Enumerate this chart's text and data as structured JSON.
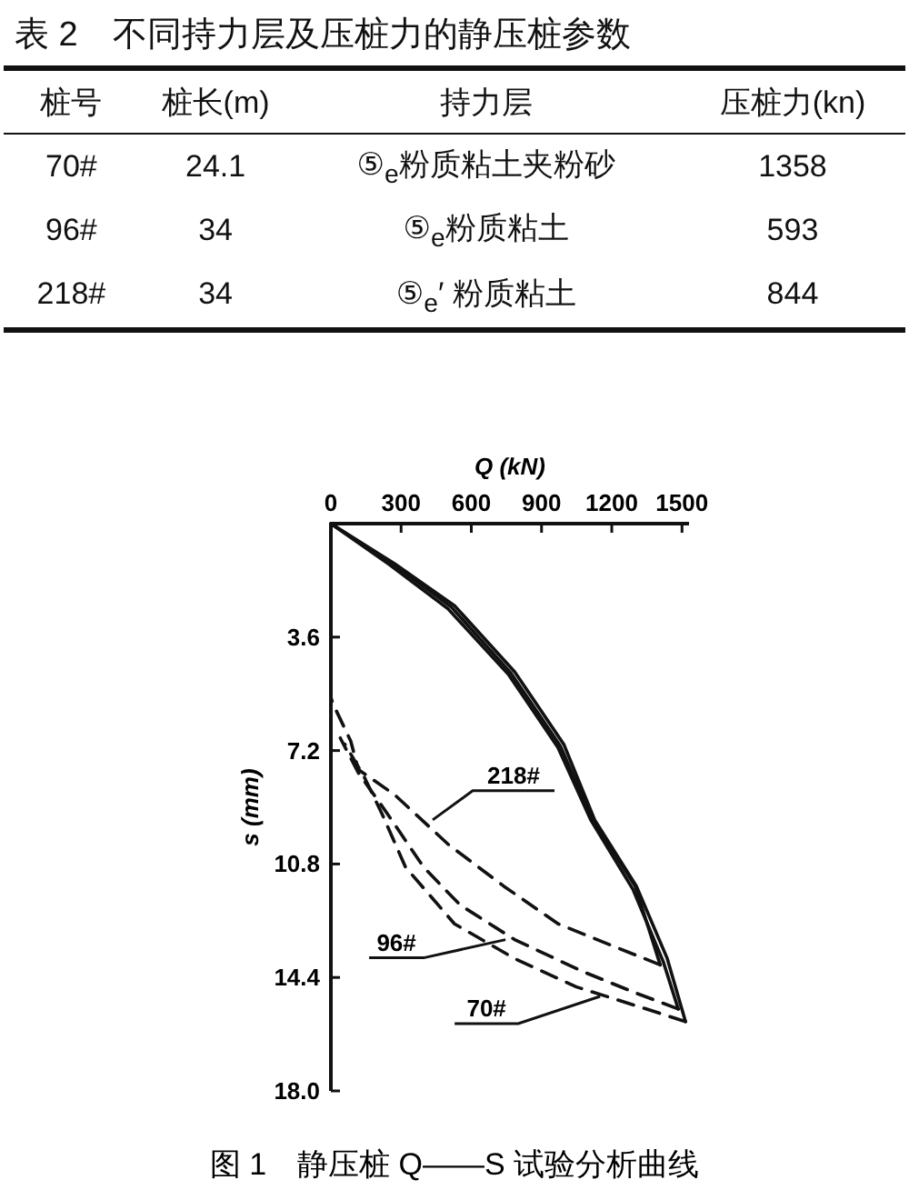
{
  "chart_data": [
    {
      "type": "other",
      "title": "表 2　不同持力层及压桩力的静压桩参数",
      "annotations": [
        "桩号",
        "桩长(m)",
        "持力层",
        "压桩力(kn)",
        "70#",
        "24.1",
        "⑤$_{e}$粉质粘土夹粉砂",
        "1358",
        "96#",
        "34",
        "⑤$_{e}$粉质粘土",
        "593",
        "218#",
        "34",
        "⑤$_{e}$′ 粉质粘土",
        "844"
      ]
    },
    {
      "type": "line",
      "xlabel": "Q (kN)",
      "ylabel": "s (mm)",
      "xlim": [
        0,
        1530
      ],
      "ylim": [
        18,
        0
      ],
      "xticks": [
        0,
        300,
        600,
        900,
        1200,
        1500
      ],
      "yticks": [
        {
          "value": 3.6,
          "label": "3.6"
        },
        {
          "value": 7.2,
          "label": "7.2"
        },
        {
          "value": 10.8,
          "label": "10.8"
        },
        {
          "value": 14.4,
          "label": "14.4"
        },
        {
          "value": 18,
          "label": "18.0"
        }
      ],
      "grid": false,
      "series": [
        {
          "color": "#111111",
          "line_style": "solid",
          "x": [
            0,
            272,
            528,
            785,
            995,
            1127,
            1305,
            1437,
            1515
          ],
          "values": [
            0,
            1.27,
            2.6,
            4.7,
            7.0,
            9.4,
            11.5,
            13.8,
            15.8
          ]
        },
        {
          "color": "#111111",
          "line_style": "solid",
          "x": [
            0,
            250,
            500,
            760,
            970,
            1110,
            1290,
            1420,
            1484
          ],
          "values": [
            0,
            1.3,
            2.7,
            4.8,
            7.1,
            9.4,
            11.6,
            13.9,
            15.4
          ]
        },
        {
          "color": "#111111",
          "line_style": "solid",
          "x": [
            0,
            260,
            515,
            770,
            980,
            1120,
            1300,
            1407
          ],
          "values": [
            0,
            1.25,
            2.65,
            4.75,
            7.05,
            9.4,
            11.5,
            14.0
          ]
        },
        {
          "color": "#111111",
          "line_style": "dashed",
          "x": [
            1407,
            1204,
            971,
            738,
            505,
            272,
            117,
            85,
            8,
            0
          ],
          "values": [
            14.0,
            13.4,
            12.7,
            11.5,
            10.2,
            8.6,
            7.8,
            6.9,
            5.7,
            5.5
          ]
        },
        {
          "color": "#111111",
          "line_style": "dashed",
          "x": [
            1484,
            1305,
            1072,
            785,
            552,
            396,
            241,
            117,
            40
          ],
          "values": [
            15.4,
            14.9,
            14.2,
            13.2,
            12.1,
            10.9,
            9.2,
            7.9,
            6.8
          ]
        },
        {
          "color": "#111111",
          "line_style": "dashed",
          "x": [
            1515,
            1305,
            1049,
            785,
            528,
            319,
            218,
            140,
            60
          ],
          "values": [
            15.8,
            15.3,
            14.7,
            13.8,
            12.7,
            10.9,
            9.2,
            8.0,
            7.0
          ]
        }
      ],
      "annotations": [
        {
          "text": "218#",
          "x": 435,
          "y": 9.4
        },
        {
          "text": "96#",
          "x": 746,
          "y": 13.2
        },
        {
          "text": "70#",
          "x": 1150,
          "y": 15.0
        },
        "图 1　静压桩 Q——S 试验分析曲线"
      ]
    }
  ]
}
